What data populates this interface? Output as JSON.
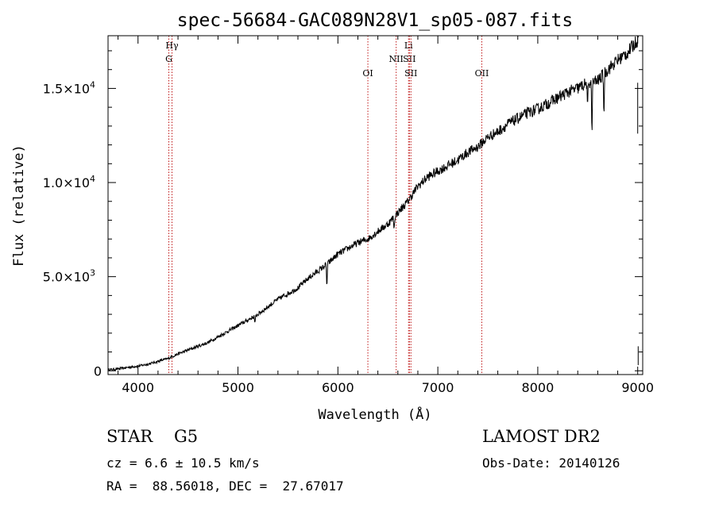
{
  "chart_data": {
    "type": "line",
    "title": "spec-56684-GAC089N28V1_sp05-087.fits",
    "xlabel": "Wavelength (Å)",
    "ylabel": "Flux (relative)",
    "xlim": [
      3700,
      9050
    ],
    "ylim": [
      -200,
      17800
    ],
    "x_ticks": [
      4000,
      5000,
      6000,
      7000,
      8000,
      9000
    ],
    "x_tick_labels": [
      "4000",
      "5000",
      "6000",
      "7000",
      "8000",
      "9000"
    ],
    "y_ticks": [
      0,
      5000,
      10000,
      15000
    ],
    "y_tick_labels": [
      {
        "mantissa": "0",
        "exp": ""
      },
      {
        "mantissa": "5.0×10",
        "exp": "3"
      },
      {
        "mantissa": "1.0×10",
        "exp": "4"
      },
      {
        "mantissa": "1.5×10",
        "exp": "4"
      }
    ],
    "grid": false,
    "line_color": "#000000",
    "spectrum": [
      [
        3700,
        50
      ],
      [
        3800,
        100
      ],
      [
        3900,
        180
      ],
      [
        4000,
        250
      ],
      [
        4100,
        350
      ],
      [
        4200,
        500
      ],
      [
        4300,
        650
      ],
      [
        4400,
        900
      ],
      [
        4500,
        1100
      ],
      [
        4600,
        1300
      ],
      [
        4700,
        1500
      ],
      [
        4800,
        1800
      ],
      [
        4900,
        2100
      ],
      [
        5000,
        2400
      ],
      [
        5100,
        2700
      ],
      [
        5200,
        3000
      ],
      [
        5300,
        3400
      ],
      [
        5400,
        3800
      ],
      [
        5500,
        4100
      ],
      [
        5600,
        4400
      ],
      [
        5700,
        4900
      ],
      [
        5800,
        5300
      ],
      [
        5900,
        5700
      ],
      [
        6000,
        6200
      ],
      [
        6100,
        6500
      ],
      [
        6200,
        6800
      ],
      [
        6300,
        7000
      ],
      [
        6400,
        7400
      ],
      [
        6500,
        7800
      ],
      [
        6600,
        8400
      ],
      [
        6700,
        9000
      ],
      [
        6800,
        9800
      ],
      [
        6900,
        10300
      ],
      [
        7000,
        10600
      ],
      [
        7100,
        10900
      ],
      [
        7200,
        11200
      ],
      [
        7300,
        11600
      ],
      [
        7400,
        11900
      ],
      [
        7500,
        12400
      ],
      [
        7600,
        12700
      ],
      [
        7700,
        13100
      ],
      [
        7800,
        13400
      ],
      [
        7900,
        13700
      ],
      [
        8000,
        13900
      ],
      [
        8100,
        14200
      ],
      [
        8200,
        14500
      ],
      [
        8300,
        14800
      ],
      [
        8400,
        15000
      ],
      [
        8500,
        15300
      ],
      [
        8600,
        15400
      ],
      [
        8700,
        16000
      ],
      [
        8800,
        16500
      ],
      [
        8900,
        16900
      ],
      [
        9000,
        17600
      ]
    ],
    "absorption_features": [
      {
        "x": 5890,
        "depth": 1300
      },
      {
        "x": 5170,
        "depth": 500
      },
      {
        "x": 6563,
        "depth": 700
      },
      {
        "x": 8498,
        "depth": 1700
      },
      {
        "x": 8542,
        "depth": 3000
      },
      {
        "x": 8662,
        "depth": 2400
      }
    ],
    "line_markers": [
      {
        "x": 4340,
        "label": "Hγ",
        "row": 0
      },
      {
        "x": 4308,
        "label": "G",
        "row": 1
      },
      {
        "x": 6300,
        "label": "OI",
        "row": 2
      },
      {
        "x": 6583,
        "label": "NII",
        "row": 1
      },
      {
        "x": 6707,
        "label": "Li",
        "row": 0
      },
      {
        "x": 6716,
        "label": "SII",
        "row": 1
      },
      {
        "x": 6731,
        "label": "SII",
        "row": 2
      },
      {
        "x": 7440,
        "label": "OII",
        "row": 2
      }
    ],
    "marker_color": "#c01818"
  },
  "info": {
    "object_class": "STAR",
    "subclass": "G5",
    "survey": "LAMOST DR2",
    "redshift": "cz = 6.6 ± 10.5 km/s",
    "obs_date": "Obs-Date: 20140126",
    "coords": "RA =  88.56018, DEC =  27.67017"
  }
}
